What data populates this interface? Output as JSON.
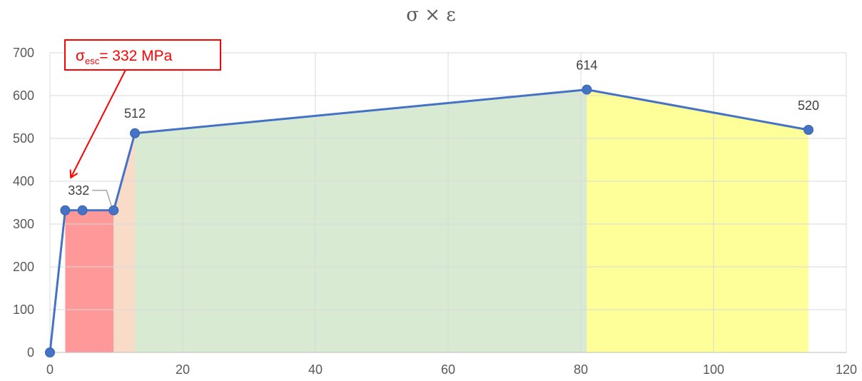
{
  "chart_data": {
    "type": "line",
    "title": "σ × ε",
    "xlabel": "",
    "ylabel": "",
    "xlim": [
      0,
      120
    ],
    "ylim": [
      0,
      700
    ],
    "x_ticks": [
      0,
      20,
      40,
      60,
      80,
      100,
      120
    ],
    "y_ticks": [
      0,
      100,
      200,
      300,
      400,
      500,
      600,
      700
    ],
    "grid": true,
    "series": [
      {
        "points": [
          {
            "x": 0,
            "y": 0
          },
          {
            "x": 2.3,
            "y": 332
          },
          {
            "x": 4.9,
            "y": 332
          },
          {
            "x": 9.6,
            "y": 332
          },
          {
            "x": 12.8,
            "y": 512
          },
          {
            "x": 80.9,
            "y": 614
          },
          {
            "x": 114.3,
            "y": 520
          }
        ],
        "color": "#4472c4"
      }
    ],
    "data_labels": [
      {
        "x": 9.6,
        "y": 332,
        "text": "332"
      },
      {
        "x": 12.8,
        "y": 512,
        "text": "512"
      },
      {
        "x": 80.9,
        "y": 614,
        "text": "614"
      },
      {
        "x": 114.3,
        "y": 520,
        "text": "520"
      }
    ],
    "regions": [
      {
        "x0": 2.3,
        "x1": 9.6,
        "color": "#ff9999"
      },
      {
        "x0": 9.6,
        "x1": 12.8,
        "color": "#f8dcc8"
      },
      {
        "x0": 12.8,
        "x1": 80.9,
        "color": "#d9ead3"
      },
      {
        "x0": 80.9,
        "x1": 114.3,
        "color": "#ffff99"
      }
    ],
    "annotation": {
      "symbol": "σ",
      "subscript": "esc",
      "rest": "= 332 MPa",
      "color": "#ff0000",
      "target": {
        "x": 3.2,
        "y": 410
      }
    }
  }
}
